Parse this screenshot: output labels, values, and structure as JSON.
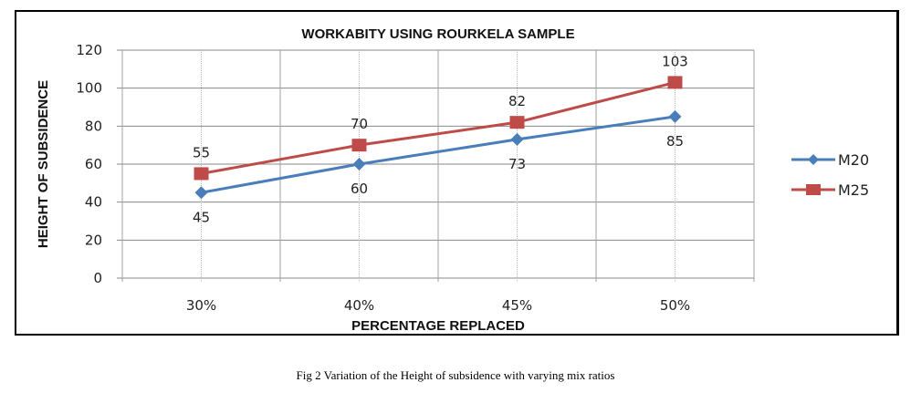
{
  "chart_data": {
    "type": "line",
    "title": "WORKABITY USING ROURKELA SAMPLE",
    "xlabel": "PERCENTAGE REPLACED",
    "ylabel": "HEIGHT OF SUBSIDENCE",
    "categories": [
      "30%",
      "40%",
      "45%",
      "50%"
    ],
    "ylim": [
      0,
      120
    ],
    "yticks": [
      0,
      20,
      40,
      60,
      80,
      100,
      120
    ],
    "grid": true,
    "legend": "right",
    "series": [
      {
        "name": "M20",
        "values": [
          45,
          60,
          73,
          85
        ],
        "color": "#4a7ebb",
        "marker": "diamond",
        "label_pos": "below"
      },
      {
        "name": "M25",
        "values": [
          55,
          70,
          82,
          103
        ],
        "color": "#be4b48",
        "marker": "square",
        "label_pos": "above"
      }
    ]
  },
  "caption": "Fig 2 Variation of the Height of subsidence with varying mix ratios"
}
